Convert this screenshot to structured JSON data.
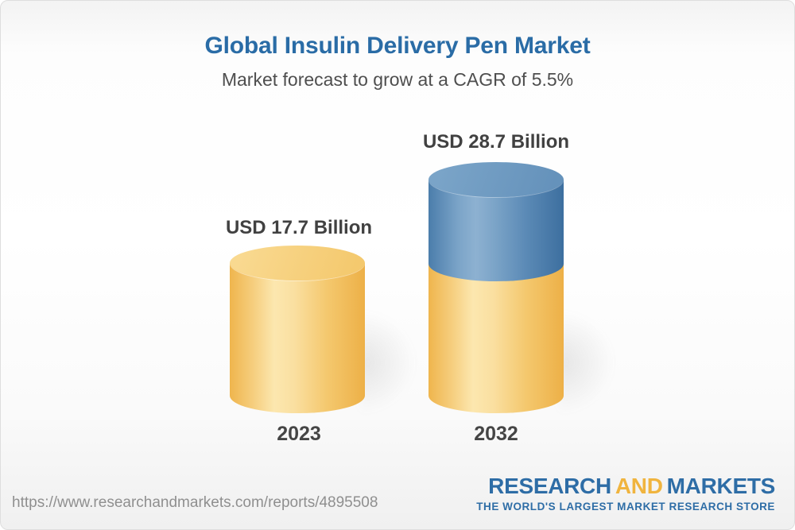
{
  "header": {
    "title": "Global Insulin Delivery Pen Market",
    "subtitle": "Market forecast to grow at a CAGR of 5.5%"
  },
  "chart_data": {
    "type": "bar",
    "subtype": "3d-cylinder",
    "categories": [
      "2023",
      "2032"
    ],
    "values": [
      17.7,
      28.7
    ],
    "unit": "USD Billion",
    "value_labels": [
      "USD 17.7 Billion",
      "USD 28.7 Billion"
    ],
    "cagr_percent": 5.5,
    "title": "Global Insulin Delivery Pen Market",
    "xlabel": "",
    "ylabel": "",
    "legend": "none",
    "grid": false,
    "colors": {
      "base_segment": "#f2c469",
      "growth_segment": "#6f9cc3"
    }
  },
  "colors": {
    "title_blue": "#2a6ca6",
    "label_gray": "#414141",
    "logo_blue": "#2e6da6",
    "logo_yellow": "#f0b43e",
    "url_gray": "#8f8f8f"
  },
  "footer": {
    "url": "https://www.researchandmarkets.com/reports/4895508",
    "logo": {
      "part1": "RESEARCH",
      "part2": "AND",
      "part3": "MARKETS",
      "tagline": "THE WORLD'S LARGEST MARKET RESEARCH STORE"
    }
  }
}
